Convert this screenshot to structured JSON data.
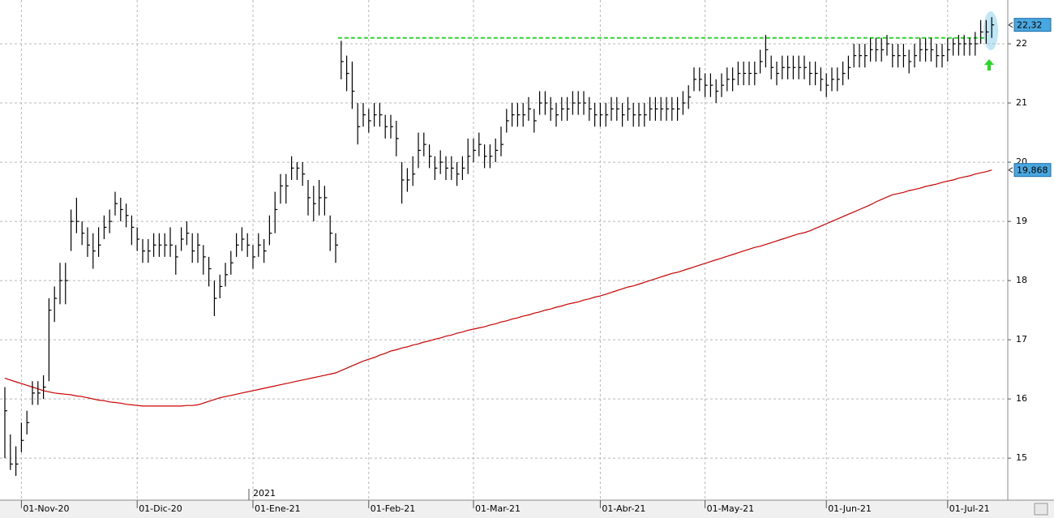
{
  "chart_data": {
    "type": "ohlc",
    "categories": [
      null,
      null,
      null,
      "01-Nov-20",
      null,
      null,
      null,
      null,
      null,
      null,
      null,
      null,
      null,
      null,
      null,
      null,
      null,
      null,
      null,
      null,
      null,
      null,
      null,
      null,
      "01-Dic-20",
      null,
      null,
      null,
      null,
      null,
      null,
      null,
      null,
      null,
      null,
      null,
      null,
      null,
      null,
      null,
      null,
      null,
      null,
      null,
      null,
      "01-Ene-21",
      null,
      null,
      null,
      null,
      null,
      null,
      null,
      null,
      null,
      null,
      null,
      null,
      null,
      null,
      null,
      null,
      null,
      null,
      null,
      null,
      "01-Feb-21",
      null,
      null,
      null,
      null,
      null,
      null,
      null,
      null,
      null,
      null,
      null,
      null,
      null,
      null,
      null,
      null,
      null,
      null,
      "01-Mar-21",
      null,
      null,
      null,
      null,
      null,
      null,
      null,
      null,
      null,
      null,
      null,
      null,
      null,
      null,
      null,
      null,
      null,
      null,
      null,
      null,
      null,
      null,
      "01-Abr-21",
      null,
      null,
      null,
      null,
      null,
      null,
      null,
      null,
      null,
      null,
      null,
      null,
      null,
      null,
      null,
      null,
      null,
      null,
      "01-May-21",
      null,
      null,
      null,
      null,
      null,
      null,
      null,
      null,
      null,
      null,
      null,
      null,
      null,
      null,
      null,
      null,
      null,
      null,
      null,
      null,
      null,
      "01-Jun-21",
      null,
      null,
      null,
      null,
      null,
      null,
      null,
      null,
      null,
      null,
      null,
      null,
      null,
      null,
      null,
      null,
      null,
      null,
      null,
      null,
      null,
      "01-Jul-21",
      null,
      null,
      null,
      null,
      null,
      null,
      null,
      null
    ],
    "high": [
      16.2,
      15.4,
      15.2,
      15.6,
      15.8,
      16.3,
      16.3,
      16.4,
      17.7,
      17.9,
      18.3,
      18.3,
      19.2,
      19.4,
      19.0,
      18.9,
      18.8,
      18.9,
      19.1,
      19.2,
      19.5,
      19.4,
      19.3,
      19.1,
      18.9,
      18.7,
      18.7,
      18.8,
      18.8,
      18.8,
      18.9,
      18.6,
      18.9,
      19.0,
      18.8,
      18.8,
      18.6,
      18.4,
      18.0,
      18.1,
      18.3,
      18.5,
      18.8,
      18.9,
      18.8,
      18.6,
      18.8,
      18.7,
      19.1,
      19.5,
      19.8,
      19.8,
      20.1,
      20.0,
      20.0,
      19.7,
      19.6,
      19.7,
      19.6,
      19.1,
      18.8,
      22.05,
      21.8,
      21.7,
      21.0,
      21.0,
      20.9,
      21.0,
      21.0,
      20.8,
      20.8,
      20.7,
      20.0,
      19.9,
      20.1,
      20.5,
      20.5,
      20.3,
      20.1,
      20.2,
      20.1,
      20.1,
      20.0,
      20.1,
      20.4,
      20.4,
      20.5,
      20.3,
      20.3,
      20.4,
      20.6,
      20.9,
      21.0,
      21.0,
      21.0,
      21.1,
      20.9,
      21.2,
      21.2,
      21.1,
      21.0,
      21.1,
      21.1,
      21.2,
      21.2,
      21.2,
      21.1,
      21.0,
      21.0,
      21.0,
      21.1,
      21.1,
      21.0,
      21.1,
      21.0,
      21.0,
      21.0,
      21.1,
      21.1,
      21.1,
      21.1,
      21.1,
      21.1,
      21.2,
      21.3,
      21.6,
      21.6,
      21.5,
      21.5,
      21.4,
      21.5,
      21.6,
      21.6,
      21.7,
      21.7,
      21.7,
      21.7,
      21.9,
      22.15,
      21.8,
      21.7,
      21.8,
      21.8,
      21.8,
      21.8,
      21.8,
      21.7,
      21.7,
      21.6,
      21.5,
      21.6,
      21.6,
      21.7,
      21.8,
      22.0,
      22.0,
      22.0,
      22.1,
      22.1,
      22.1,
      22.15,
      22.0,
      22.0,
      22.0,
      21.9,
      22.0,
      22.1,
      22.1,
      22.1,
      22.0,
      22.0,
      22.1,
      22.1,
      22.15,
      22.15,
      22.1,
      22.2,
      22.4,
      22.4,
      22.45
    ],
    "low": [
      15.0,
      14.8,
      14.7,
      15.1,
      15.4,
      15.9,
      15.9,
      16.0,
      16.3,
      17.3,
      17.6,
      17.6,
      18.5,
      18.8,
      18.6,
      18.4,
      18.2,
      18.4,
      18.7,
      18.8,
      19.1,
      19.0,
      18.9,
      18.6,
      18.5,
      18.3,
      18.3,
      18.4,
      18.4,
      18.4,
      18.4,
      18.1,
      18.5,
      18.6,
      18.3,
      18.3,
      18.1,
      17.9,
      17.4,
      17.7,
      17.9,
      18.1,
      18.4,
      18.5,
      18.4,
      18.2,
      18.4,
      18.3,
      18.6,
      18.8,
      19.3,
      19.3,
      19.7,
      19.7,
      19.6,
      19.1,
      19.0,
      19.1,
      19.1,
      18.5,
      18.3,
      21.4,
      21.2,
      20.9,
      20.3,
      20.6,
      20.5,
      20.6,
      20.6,
      20.4,
      20.4,
      20.1,
      19.3,
      19.5,
      19.6,
      19.9,
      20.1,
      19.9,
      19.7,
      19.8,
      19.7,
      19.7,
      19.6,
      19.7,
      19.8,
      20.0,
      20.1,
      19.9,
      19.9,
      20.0,
      20.1,
      20.5,
      20.6,
      20.6,
      20.6,
      20.7,
      20.5,
      20.8,
      20.8,
      20.7,
      20.6,
      20.7,
      20.7,
      20.8,
      20.8,
      20.8,
      20.7,
      20.6,
      20.6,
      20.6,
      20.7,
      20.7,
      20.6,
      20.7,
      20.6,
      20.6,
      20.6,
      20.7,
      20.7,
      20.7,
      20.7,
      20.7,
      20.7,
      20.8,
      20.9,
      21.2,
      21.2,
      21.1,
      21.1,
      21.0,
      21.1,
      21.2,
      21.2,
      21.3,
      21.3,
      21.3,
      21.3,
      21.5,
      21.6,
      21.4,
      21.3,
      21.4,
      21.4,
      21.4,
      21.4,
      21.4,
      21.3,
      21.3,
      21.2,
      21.1,
      21.2,
      21.2,
      21.3,
      21.4,
      21.6,
      21.6,
      21.6,
      21.7,
      21.7,
      21.7,
      21.8,
      21.6,
      21.6,
      21.6,
      21.5,
      21.6,
      21.7,
      21.7,
      21.7,
      21.6,
      21.6,
      21.7,
      21.8,
      21.8,
      21.8,
      21.8,
      21.8,
      22.0,
      22.0,
      22.1
    ],
    "close": [
      15.8,
      14.9,
      14.9,
      15.3,
      15.6,
      16.1,
      16.1,
      16.2,
      17.5,
      17.7,
      18.0,
      18.0,
      19.0,
      19.0,
      18.8,
      18.6,
      18.5,
      18.6,
      18.9,
      19.0,
      19.3,
      19.2,
      19.1,
      18.9,
      18.7,
      18.5,
      18.5,
      18.6,
      18.6,
      18.6,
      18.6,
      18.4,
      18.7,
      18.8,
      18.5,
      18.6,
      18.4,
      18.2,
      17.7,
      17.9,
      18.1,
      18.3,
      18.6,
      18.7,
      18.6,
      18.4,
      18.6,
      18.5,
      18.8,
      19.2,
      19.6,
      19.6,
      19.9,
      19.9,
      19.8,
      19.4,
      19.3,
      19.4,
      19.4,
      18.8,
      18.6,
      21.7,
      21.5,
      21.2,
      20.6,
      20.8,
      20.7,
      20.8,
      20.8,
      20.6,
      20.6,
      20.4,
      19.7,
      19.7,
      19.8,
      20.2,
      20.3,
      20.1,
      19.9,
      20.0,
      19.9,
      19.9,
      19.8,
      19.9,
      20.1,
      20.2,
      20.3,
      20.1,
      20.1,
      20.2,
      20.3,
      20.7,
      20.8,
      20.8,
      20.8,
      20.9,
      20.7,
      21.0,
      21.0,
      20.9,
      20.8,
      20.9,
      20.9,
      21.0,
      21.0,
      21.0,
      20.9,
      20.8,
      20.8,
      20.8,
      20.9,
      20.9,
      20.8,
      20.9,
      20.8,
      20.8,
      20.8,
      20.9,
      20.9,
      20.9,
      20.9,
      20.9,
      20.9,
      21.0,
      21.1,
      21.4,
      21.4,
      21.3,
      21.3,
      21.2,
      21.3,
      21.4,
      21.4,
      21.5,
      21.5,
      21.5,
      21.5,
      21.7,
      21.9,
      21.6,
      21.5,
      21.6,
      21.6,
      21.6,
      21.6,
      21.6,
      21.5,
      21.5,
      21.4,
      21.3,
      21.4,
      21.4,
      21.5,
      21.6,
      21.8,
      21.8,
      21.8,
      21.9,
      21.9,
      21.9,
      22.0,
      21.8,
      21.8,
      21.8,
      21.7,
      21.8,
      21.9,
      21.9,
      21.9,
      21.8,
      21.8,
      21.9,
      22.0,
      22.0,
      22.0,
      22.0,
      22.0,
      22.2,
      22.2,
      22.32
    ],
    "color": "#000000",
    "moving_average": {
      "color": "#cc0000",
      "values": [
        16.35,
        16.32,
        16.29,
        16.26,
        16.23,
        16.2,
        16.17,
        16.14,
        16.12,
        16.1,
        16.09,
        16.08,
        16.07,
        16.05,
        16.04,
        16.02,
        16.0,
        15.98,
        15.97,
        15.95,
        15.94,
        15.93,
        15.91,
        15.9,
        15.89,
        15.88,
        15.88,
        15.88,
        15.88,
        15.88,
        15.88,
        15.88,
        15.88,
        15.89,
        15.89,
        15.9,
        15.93,
        15.96,
        15.99,
        16.02,
        16.04,
        16.06,
        16.08,
        16.1,
        16.12,
        16.14,
        16.16,
        16.18,
        16.2,
        16.22,
        16.24,
        16.26,
        16.28,
        16.3,
        16.32,
        16.34,
        16.36,
        16.38,
        16.4,
        16.42,
        16.44,
        16.48,
        16.52,
        16.56,
        16.6,
        16.64,
        16.67,
        16.7,
        16.74,
        16.77,
        16.81,
        16.83,
        16.86,
        16.88,
        16.91,
        16.93,
        16.96,
        16.98,
        17.01,
        17.03,
        17.06,
        17.08,
        17.11,
        17.13,
        17.16,
        17.18,
        17.2,
        17.22,
        17.25,
        17.27,
        17.3,
        17.32,
        17.35,
        17.37,
        17.4,
        17.42,
        17.45,
        17.47,
        17.5,
        17.52,
        17.55,
        17.57,
        17.6,
        17.62,
        17.64,
        17.67,
        17.69,
        17.72,
        17.74,
        17.77,
        17.8,
        17.83,
        17.86,
        17.89,
        17.91,
        17.94,
        17.97,
        18.0,
        18.03,
        18.06,
        18.09,
        18.12,
        18.14,
        18.17,
        18.2,
        18.23,
        18.26,
        18.29,
        18.32,
        18.35,
        18.38,
        18.41,
        18.44,
        18.47,
        18.5,
        18.53,
        18.56,
        18.58,
        18.61,
        18.64,
        18.67,
        18.7,
        18.73,
        18.76,
        18.79,
        18.81,
        18.84,
        18.88,
        18.92,
        18.96,
        19.0,
        19.04,
        19.08,
        19.12,
        19.16,
        19.2,
        19.24,
        19.28,
        19.33,
        19.37,
        19.41,
        19.45,
        19.47,
        19.49,
        19.52,
        19.54,
        19.56,
        19.59,
        19.61,
        19.63,
        19.66,
        19.68,
        19.7,
        19.73,
        19.75,
        19.77,
        19.8,
        19.82,
        19.84,
        19.868
      ]
    },
    "resistance": {
      "value": 22.1,
      "color": "#22dd22"
    },
    "price_labels": [
      {
        "value": 22.32,
        "label": "22,32"
      },
      {
        "value": 19.868,
        "label": "19,868"
      }
    ],
    "year_label": "2021",
    "ylim": [
      14.29,
      22.74
    ],
    "yticks": [
      15,
      16,
      17,
      18,
      19,
      20,
      21,
      22
    ],
    "grid": true
  }
}
